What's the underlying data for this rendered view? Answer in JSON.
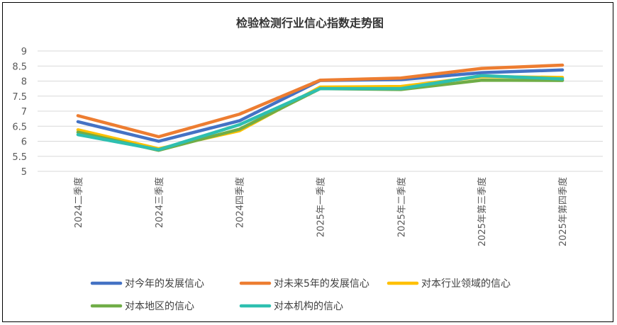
{
  "chart_data": {
    "type": "line",
    "title": "检验检测行业信心指数走势图",
    "categories": [
      "2024二季度",
      "2024三季度",
      "2024四季度",
      "2025年一季度",
      "2025年二季度",
      "2025年第三季度",
      "2025年第四季度"
    ],
    "ylim": [
      5,
      9
    ],
    "yticks": [
      "5",
      "5.5",
      "6",
      "6.5",
      "7",
      "7.5",
      "8",
      "8.5",
      "9"
    ],
    "grid": true,
    "legend": "bottom",
    "series": [
      {
        "name": "对今年的发展信心",
        "color": "#4472C4",
        "values": [
          6.65,
          6.0,
          6.68,
          8.02,
          8.05,
          8.28,
          8.37
        ]
      },
      {
        "name": "对未来5年的发展信心",
        "color": "#ED7D31",
        "values": [
          6.85,
          6.15,
          6.9,
          8.03,
          8.1,
          8.42,
          8.53
        ]
      },
      {
        "name": "对本行业领域的信心",
        "color": "#FFC000",
        "values": [
          6.38,
          5.75,
          6.35,
          7.8,
          7.82,
          8.15,
          8.12
        ]
      },
      {
        "name": "对本地区的信心",
        "color": "#70AD47",
        "values": [
          6.3,
          5.7,
          6.4,
          7.75,
          7.72,
          8.03,
          8.02
        ]
      },
      {
        "name": "对本机构的信心",
        "color": "#2EBFB0",
        "values": [
          6.22,
          5.72,
          6.55,
          7.75,
          7.75,
          8.18,
          8.07
        ]
      }
    ]
  }
}
